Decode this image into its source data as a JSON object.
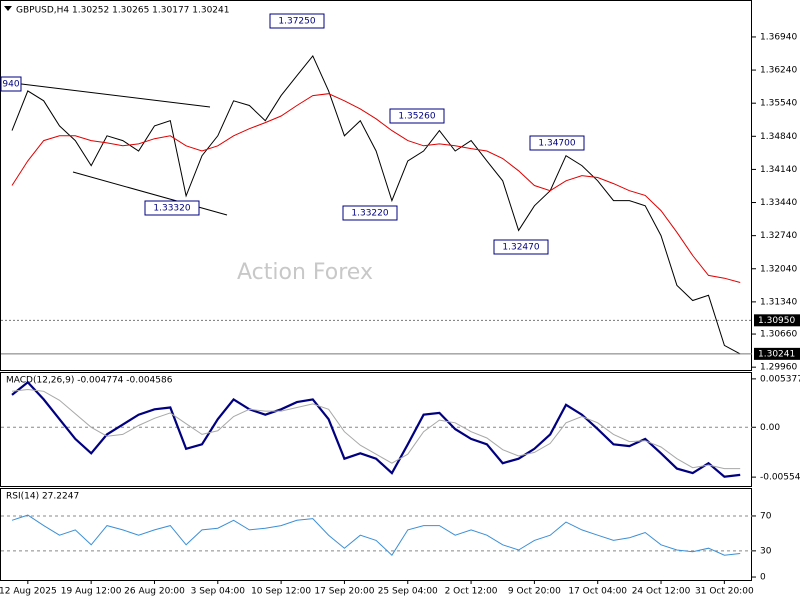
{
  "chart_data": [
    {
      "type": "line",
      "title": "GBPUSD,H4 1.30252 1.30265 1.30177 1.30241",
      "watermark": "Action Forex",
      "categories": [
        null,
        "12 Aug 2025",
        null,
        null,
        null,
        "19 Aug 12:00",
        null,
        null,
        null,
        "26 Aug 20:00",
        null,
        null,
        null,
        "3 Sep 04:00",
        null,
        null,
        null,
        "10 Sep 12:00",
        null,
        null,
        null,
        "17 Sep 20:00",
        null,
        null,
        null,
        "25 Sep 04:00",
        null,
        null,
        null,
        "2 Oct 12:00",
        null,
        null,
        null,
        "9 Oct 20:00",
        null,
        null,
        null,
        "17 Oct 04:00",
        null,
        null,
        null,
        "24 Oct 12:00",
        null,
        null,
        null,
        "31 Oct 20:00",
        null
      ],
      "series": [
        {
          "color": "#000000",
          "values": [
            1.3496,
            1.358,
            1.3559,
            1.3506,
            1.3475,
            1.3422,
            1.3485,
            1.3475,
            1.3453,
            1.3506,
            1.3517,
            1.3358,
            1.3443,
            1.3485,
            1.3559,
            1.3549,
            1.3517,
            1.357,
            1.3612,
            1.3654,
            1.358,
            1.3485,
            1.3517,
            1.3453,
            1.3348,
            1.3432,
            1.3453,
            1.3496,
            1.3453,
            1.3475,
            1.3432,
            1.339,
            1.3285,
            1.3337,
            1.3369,
            1.3443,
            1.3422,
            1.339,
            1.3348,
            1.3348,
            1.3337,
            1.3274,
            1.3169,
            1.3137,
            1.3148,
            1.3042,
            1.3024
          ]
        },
        {
          "color": "#e00000",
          "values": [
            1.338,
            1.3432,
            1.3475,
            1.3485,
            1.3485,
            1.3475,
            1.347,
            1.3464,
            1.3468,
            1.3479,
            1.3485,
            1.3464,
            1.3453,
            1.3464,
            1.3485,
            1.35,
            1.3513,
            1.3527,
            1.3549,
            1.357,
            1.3574,
            1.3559,
            1.3542,
            1.3521,
            1.3496,
            1.3475,
            1.3464,
            1.3468,
            1.3464,
            1.3458,
            1.3453,
            1.3437,
            1.3411,
            1.338,
            1.3369,
            1.339,
            1.3401,
            1.3397,
            1.3384,
            1.3369,
            1.3359,
            1.3327,
            1.3281,
            1.3232,
            1.319,
            1.3184,
            1.3175
          ]
        }
      ],
      "ylim": [
        1.299,
        1.377
      ],
      "yticks": [
        {
          "value": 1.3694,
          "label": "1.36940"
        },
        {
          "value": 1.3624,
          "label": "1.36240"
        },
        {
          "value": 1.3554,
          "label": "1.35540"
        },
        {
          "value": 1.3484,
          "label": "1.34840"
        },
        {
          "value": 1.3414,
          "label": "1.34140"
        },
        {
          "value": 1.3344,
          "label": "1.33440"
        },
        {
          "value": 1.3274,
          "label": "1.32740"
        },
        {
          "value": 1.3204,
          "label": "1.32040"
        },
        {
          "value": 1.3134,
          "label": "1.31340"
        },
        {
          "value": 1.3066,
          "label": "1.30660"
        },
        {
          "value": 1.2996,
          "label": "1.29960"
        }
      ],
      "price_lines": [
        {
          "value": 1.3095,
          "label": "1.30950"
        },
        1.30241
      ],
      "annotations": [
        "940",
        "1.37250",
        "1.35260",
        "1.34700",
        "1.33320",
        "1.33220",
        "1.32470"
      ]
    },
    {
      "type": "line",
      "title": "MACD(12,26,9) -0.004774 -0.004586",
      "series": [
        {
          "color": "#000080",
          "values": [
            0.0036,
            0.005,
            0.0031,
            0.0009,
            -0.0013,
            -0.0029,
            -0.0008,
            0.0003,
            0.0014,
            0.002,
            0.0022,
            -0.0024,
            -0.0019,
            0.0009,
            0.0031,
            0.002,
            0.0014,
            0.002,
            0.0028,
            0.0031,
            0.0009,
            -0.0035,
            -0.0029,
            -0.0035,
            -0.0051,
            -0.0019,
            0.0014,
            0.0016,
            -0.0002,
            -0.0013,
            -0.0019,
            -0.004,
            -0.0035,
            -0.0024,
            -0.0008,
            0.0025,
            0.0014,
            -0.0002,
            -0.0019,
            -0.0021,
            -0.0013,
            -0.0029,
            -0.0046,
            -0.0051,
            -0.004,
            -0.0055,
            -0.0053
          ]
        },
        {
          "color": "#a8a8a8",
          "values": [
            0.004,
            0.0042,
            0.004,
            0.003,
            0.0015,
            0.0,
            -0.001,
            -0.0008,
            0.0002,
            0.001,
            0.0016,
            0.0004,
            -0.0008,
            -0.0004,
            0.0012,
            0.002,
            0.0018,
            0.0018,
            0.0022,
            0.0026,
            0.002,
            -0.0005,
            -0.002,
            -0.003,
            -0.004,
            -0.003,
            -0.0005,
            0.0008,
            0.0005,
            -0.0005,
            -0.0012,
            -0.0025,
            -0.0032,
            -0.0028,
            -0.0018,
            0.0005,
            0.0012,
            0.0005,
            -0.0008,
            -0.0016,
            -0.0015,
            -0.0022,
            -0.0035,
            -0.0045,
            -0.0042,
            -0.0046,
            -0.0046
          ]
        }
      ],
      "ylim": [
        -0.00653,
        0.00603
      ],
      "yticks": [
        0.005377,
        {
          "value": 0,
          "label": "0.00"
        },
        -0.005543
      ],
      "levels": [
        0
      ]
    },
    {
      "type": "line",
      "title": "RSI(14) 27.2247",
      "series": [
        {
          "color": "#3c8fd6",
          "values": [
            65,
            71,
            59,
            48,
            54,
            37,
            59,
            54,
            48,
            54,
            59,
            37,
            54,
            56,
            65,
            54,
            56,
            59,
            65,
            67,
            48,
            33,
            48,
            42,
            25,
            54,
            59,
            59,
            48,
            54,
            48,
            37,
            31,
            42,
            48,
            63,
            54,
            48,
            42,
            45,
            51,
            37,
            31,
            29,
            33,
            25,
            27
          ]
        }
      ],
      "ylim": [
        -3.4,
        100.9
      ],
      "yticks": [
        70,
        30,
        0
      ],
      "levels": [
        70,
        30
      ]
    }
  ]
}
